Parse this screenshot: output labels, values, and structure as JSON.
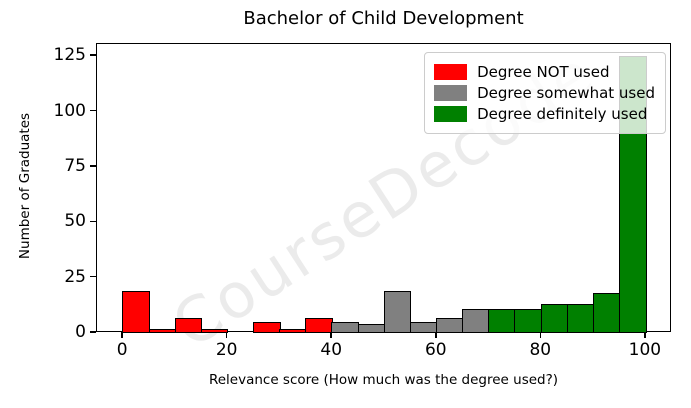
{
  "chart_data": {
    "type": "histogram",
    "title": "Bachelor of Child Development",
    "xlabel": "Relevance score (How much was the degree used?)",
    "ylabel": "Number of Graduates",
    "watermark": "CourseDecode",
    "xlim": [
      -5,
      105
    ],
    "ylim": [
      0,
      130.5
    ],
    "xticks": [
      0,
      20,
      40,
      60,
      80,
      100
    ],
    "yticks": [
      0,
      25,
      50,
      75,
      100,
      125
    ],
    "bin_width": 5,
    "grid": false,
    "legend_position": "upper right",
    "legend": [
      {
        "label": "Degree NOT used",
        "color": "#ff0000"
      },
      {
        "label": "Degree somewhat used",
        "color": "#808080"
      },
      {
        "label": "Degree definitely used",
        "color": "#008000"
      }
    ],
    "bins": [
      {
        "start": 0,
        "end": 5,
        "count": 18,
        "group": "Degree NOT used",
        "color": "#ff0000"
      },
      {
        "start": 5,
        "end": 10,
        "count": 1,
        "group": "Degree NOT used",
        "color": "#ff0000"
      },
      {
        "start": 10,
        "end": 15,
        "count": 6,
        "group": "Degree NOT used",
        "color": "#ff0000"
      },
      {
        "start": 15,
        "end": 20,
        "count": 1,
        "group": "Degree NOT used",
        "color": "#ff0000"
      },
      {
        "start": 20,
        "end": 25,
        "count": 0,
        "group": "Degree NOT used",
        "color": "#ff0000"
      },
      {
        "start": 25,
        "end": 30,
        "count": 4,
        "group": "Degree NOT used",
        "color": "#ff0000"
      },
      {
        "start": 30,
        "end": 35,
        "count": 1,
        "group": "Degree NOT used",
        "color": "#ff0000"
      },
      {
        "start": 35,
        "end": 40,
        "count": 6,
        "group": "Degree NOT used",
        "color": "#ff0000"
      },
      {
        "start": 40,
        "end": 45,
        "count": 4,
        "group": "Degree somewhat used",
        "color": "#808080"
      },
      {
        "start": 45,
        "end": 50,
        "count": 3,
        "group": "Degree somewhat used",
        "color": "#808080"
      },
      {
        "start": 50,
        "end": 55,
        "count": 18,
        "group": "Degree somewhat used",
        "color": "#808080"
      },
      {
        "start": 55,
        "end": 60,
        "count": 4,
        "group": "Degree somewhat used",
        "color": "#808080"
      },
      {
        "start": 60,
        "end": 65,
        "count": 6,
        "group": "Degree somewhat used",
        "color": "#808080"
      },
      {
        "start": 65,
        "end": 70,
        "count": 10,
        "group": "Degree somewhat used",
        "color": "#808080"
      },
      {
        "start": 70,
        "end": 75,
        "count": 10,
        "group": "Degree definitely used",
        "color": "#008000"
      },
      {
        "start": 75,
        "end": 80,
        "count": 10,
        "group": "Degree definitely used",
        "color": "#008000"
      },
      {
        "start": 80,
        "end": 85,
        "count": 12,
        "group": "Degree definitely used",
        "color": "#008000"
      },
      {
        "start": 85,
        "end": 90,
        "count": 12,
        "group": "Degree definitely used",
        "color": "#008000"
      },
      {
        "start": 90,
        "end": 95,
        "count": 17,
        "group": "Degree definitely used",
        "color": "#008000"
      },
      {
        "start": 95,
        "end": 100,
        "count": 124,
        "group": "Degree definitely used",
        "color": "#008000"
      }
    ]
  }
}
